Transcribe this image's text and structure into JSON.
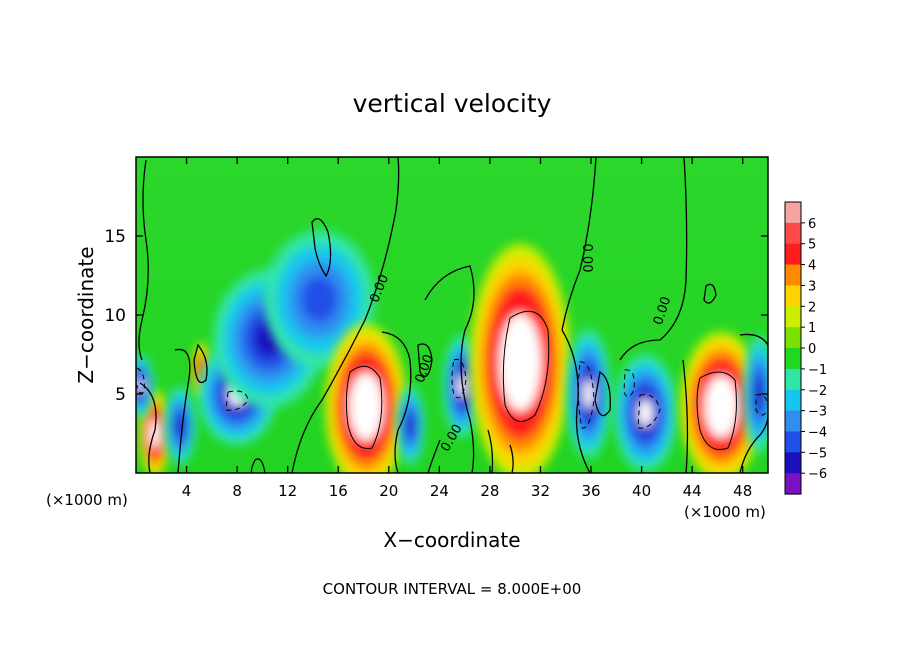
{
  "chart_data": {
    "type": "heatmap",
    "title": "vertical velocity",
    "xlabel": "X−coordinate",
    "ylabel": "Z−coordinate",
    "x_unit_left": "(×1000 m)",
    "x_unit_right": "(×1000 m)",
    "footer": "CONTOUR INTERVAL = 8.000E+00",
    "xlim": [
      0,
      50
    ],
    "ylim": [
      0,
      20
    ],
    "x_ticks": [
      4,
      8,
      12,
      16,
      20,
      24,
      28,
      32,
      36,
      40,
      44,
      48
    ],
    "y_ticks": [
      5,
      10,
      15
    ],
    "colorbar": {
      "levels": [
        "6",
        "5",
        "4",
        "3",
        "2",
        "1",
        "0",
        "−1",
        "−2",
        "−3",
        "−4",
        "−5",
        "−6"
      ],
      "colors": [
        "#f6a3a3",
        "#ff4a4a",
        "#ff1e1e",
        "#ff8a00",
        "#ffd400",
        "#ccee00",
        "#7ee000",
        "#20d820",
        "#30e6a6",
        "#16c6ee",
        "#2f8ef0",
        "#2050e8",
        "#1a10c0",
        "#7a10c0"
      ]
    },
    "contour_labels": [
      "0.00",
      "0.00",
      "0.00",
      "0.00",
      "0.00",
      "0.00"
    ],
    "features": [
      {
        "x": 1.5,
        "z": 2.5,
        "value": 7,
        "rx": 1.0,
        "rz": 2.2
      },
      {
        "x": 0.3,
        "z": 5.5,
        "value": -6,
        "rx": 0.9,
        "rz": 1.6
      },
      {
        "x": 3.5,
        "z": 3.0,
        "value": -5,
        "rx": 1.0,
        "rz": 2.0
      },
      {
        "x": 5.2,
        "z": 6.5,
        "value": 5,
        "rx": 0.6,
        "rz": 1.4
      },
      {
        "x": 8.0,
        "z": 5.0,
        "value": -6,
        "rx": 2.5,
        "rz": 2.6
      },
      {
        "x": 10.5,
        "z": 8.5,
        "value": -5,
        "rx": 3.5,
        "rz": 3.5
      },
      {
        "x": 14.5,
        "z": 11.0,
        "value": -4,
        "rx": 3.5,
        "rz": 3.5
      },
      {
        "x": 18.2,
        "z": 4.2,
        "value": 8,
        "rx": 2.6,
        "rz": 4.2
      },
      {
        "x": 21.7,
        "z": 3.0,
        "value": -5,
        "rx": 0.9,
        "rz": 2.0
      },
      {
        "x": 25.8,
        "z": 5.5,
        "value": -6,
        "rx": 1.2,
        "rz": 2.6
      },
      {
        "x": 30.4,
        "z": 7.0,
        "value": 8,
        "rx": 3.2,
        "rz": 6.0
      },
      {
        "x": 35.8,
        "z": 5.0,
        "value": -6,
        "rx": 1.4,
        "rz": 3.3
      },
      {
        "x": 40.3,
        "z": 3.8,
        "value": -6,
        "rx": 2.0,
        "rz": 3.0
      },
      {
        "x": 46.3,
        "z": 4.2,
        "value": 8,
        "rx": 2.6,
        "rz": 3.8
      },
      {
        "x": 49.3,
        "z": 5.0,
        "value": -5,
        "rx": 1.0,
        "rz": 3.0
      }
    ]
  }
}
